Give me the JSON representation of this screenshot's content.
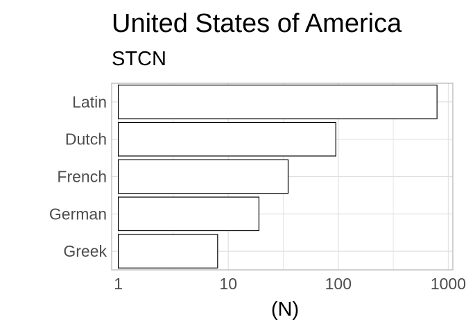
{
  "chart_data": {
    "type": "bar",
    "orientation": "horizontal",
    "title": "United States of America",
    "subtitle": "STCN",
    "xlabel": "(N)",
    "ylabel": "",
    "x_scale": "log10",
    "xlim": [
      0.87,
      1100
    ],
    "x_ticks": [
      1,
      10,
      100,
      1000
    ],
    "x_tick_labels": [
      "1",
      "10",
      "100",
      "1000"
    ],
    "categories": [
      "Latin",
      "Dutch",
      "French",
      "German",
      "Greek"
    ],
    "values": [
      790,
      95,
      35,
      19,
      8
    ],
    "bar_base": 1,
    "grid": true,
    "colors": {
      "bar_fill": "#ffffff",
      "bar_stroke": "#000000",
      "panel_border": "#b3b3b3",
      "grid": "#e0e0e0"
    }
  }
}
